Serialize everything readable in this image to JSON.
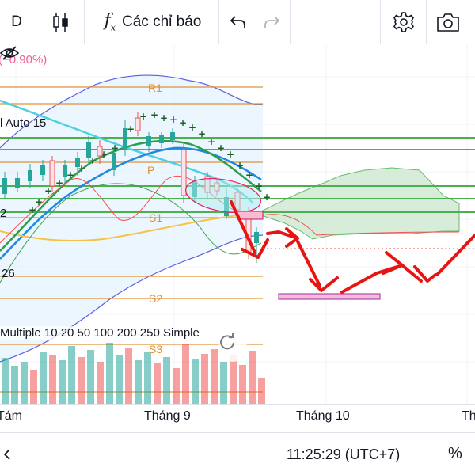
{
  "toolbar": {
    "interval": "D",
    "indicators_label": "Các chỉ báo",
    "icons": [
      "candles-icon",
      "fx-icon",
      "undo-icon",
      "redo-icon",
      "settings-icon",
      "camera-icon"
    ]
  },
  "legend": {
    "change": "(−0.90%)",
    "auto": "l Auto 15",
    "row_value": "2",
    "ichimoku_value": "26",
    "ma": "Multiple 10 20 50 100 200 250 Simple"
  },
  "pivots": {
    "r1": "R1",
    "p": "P",
    "s1": "S1",
    "s2": "S2",
    "s3": "S3"
  },
  "time_axis": {
    "labels": [
      "Tám",
      "Tháng 9",
      "Tháng 10",
      "Th"
    ]
  },
  "bottom_bar": {
    "clock": "11:25:29 (UTC+7)",
    "percent": "%"
  },
  "colors": {
    "up": "#26a69a",
    "down": "#ef5350",
    "pivot": "#e0913a",
    "bollinger": "#5b5ce6",
    "ichimoku_cloud": "#c8e6c9",
    "drawing": "#e81414"
  }
}
